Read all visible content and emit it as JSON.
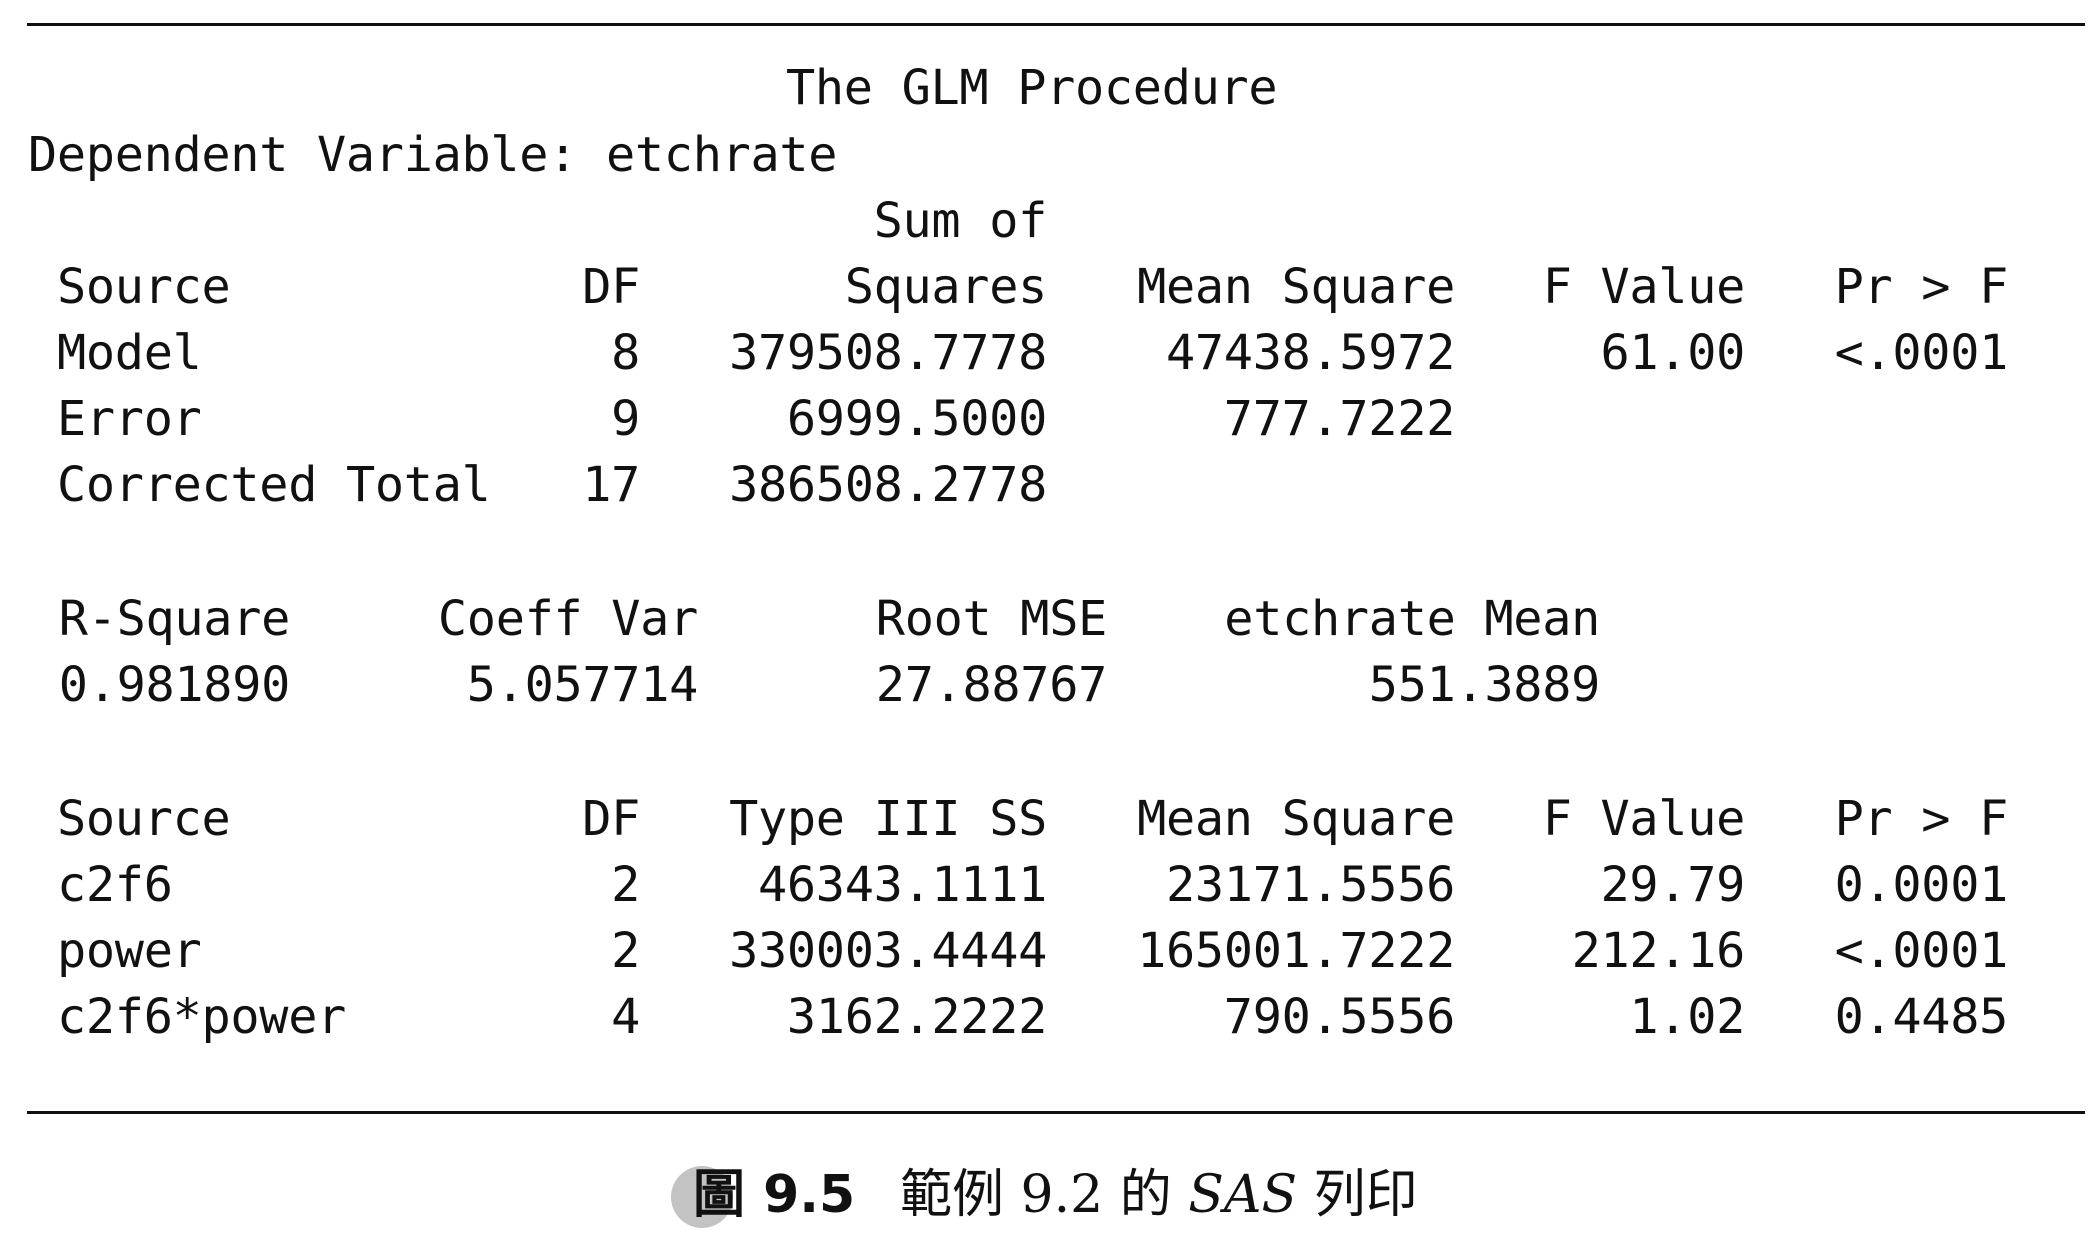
{
  "header": {
    "title": "The GLM Procedure",
    "dependent_variable": "Dependent Variable: etchrate"
  },
  "anova": {
    "header_top": {
      "ss": "Sum of"
    },
    "header": {
      "source": "Source",
      "df": "DF",
      "ss": "Squares",
      "ms": "Mean Square",
      "f": "F Value",
      "p": "Pr > F"
    },
    "rows": [
      {
        "source": "Model",
        "df": "8",
        "ss": "379508.7778",
        "ms": "47438.5972",
        "f": "61.00",
        "p": "<.0001"
      },
      {
        "source": "Error",
        "df": "9",
        "ss": "6999.5000",
        "ms": "777.7222",
        "f": "",
        "p": ""
      },
      {
        "source": "Corrected Total",
        "df": "17",
        "ss": "386508.2778",
        "ms": "",
        "f": "",
        "p": ""
      }
    ]
  },
  "fit": {
    "header": {
      "rsq": "R-Square",
      "cv": "Coeff Var",
      "rmse": "Root MSE",
      "mean": "etchrate Mean"
    },
    "values": {
      "rsq": "0.981890",
      "cv": "5.057714",
      "rmse": "27.88767",
      "mean": "551.3889"
    }
  },
  "type3": {
    "header": {
      "source": "Source",
      "df": "DF",
      "ss": "Type III SS",
      "ms": "Mean Square",
      "f": "F Value",
      "p": "Pr > F"
    },
    "rows": [
      {
        "source": "c2f6",
        "df": "2",
        "ss": "46343.1111",
        "ms": "23171.5556",
        "f": "29.79",
        "p": "0.0001"
      },
      {
        "source": "power",
        "df": "2",
        "ss": "330003.4444",
        "ms": "165001.7222",
        "f": "212.16",
        "p": "<.0001"
      },
      {
        "source": "c2f6*power",
        "df": "4",
        "ss": "3162.2222",
        "ms": "790.5556",
        "f": "1.02",
        "p": "0.4485"
      }
    ]
  },
  "caption": {
    "label": "圖 9.5",
    "text_before": "範例 9.2 的 ",
    "text_italic": "SAS",
    "text_after": " 列印"
  }
}
